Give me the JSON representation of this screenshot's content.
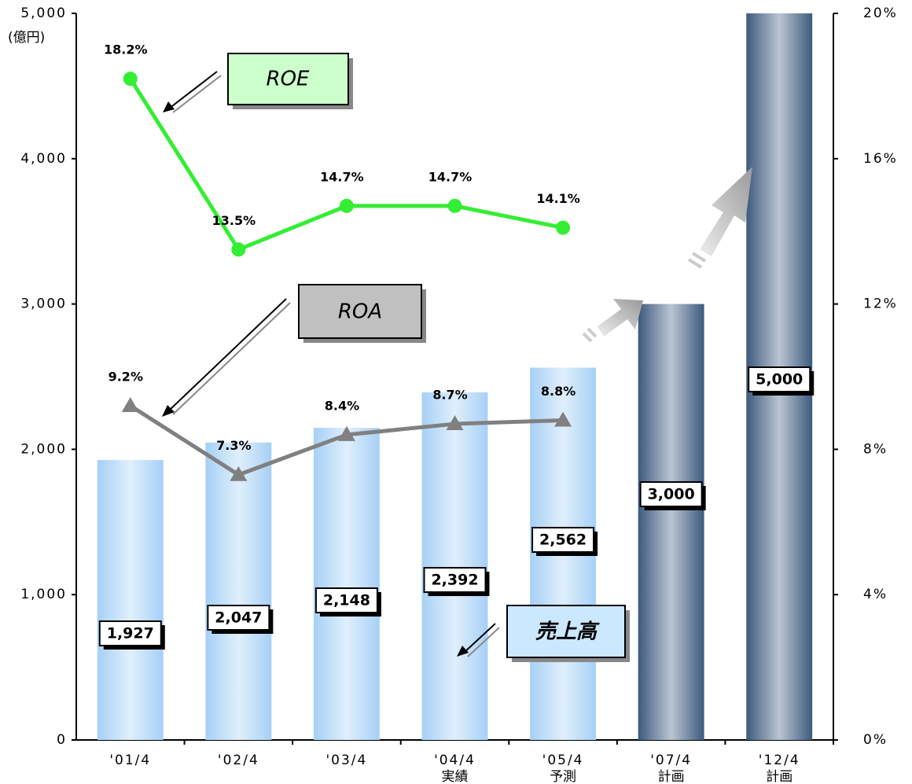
{
  "chart_data": {
    "type": "combo",
    "y_unit": "(億円)",
    "categories": [
      "'01/4",
      "'02/4",
      "'03/4",
      "'04/4",
      "'05/4",
      "'07/4",
      "'12/4"
    ],
    "sublabels": [
      null,
      null,
      null,
      "実績",
      "予測",
      "計画",
      "計画"
    ],
    "ylim": [
      0,
      5000
    ],
    "yticks": [
      0,
      {
        "value": 1000,
        "label": "1,000"
      },
      {
        "value": 2000,
        "label": "2,000"
      },
      {
        "value": 3000,
        "label": "3,000"
      },
      {
        "value": 4000,
        "label": "4,000"
      },
      {
        "value": 5000,
        "label": "5,000"
      }
    ],
    "y2lim": [
      0,
      20
    ],
    "y2ticks": [
      {
        "value": 0,
        "label": "0%"
      },
      {
        "value": 4,
        "label": "4%"
      },
      {
        "value": 8,
        "label": "8%"
      },
      {
        "value": 12,
        "label": "12%"
      },
      {
        "value": 16,
        "label": "16%"
      },
      {
        "value": 20,
        "label": "20%"
      }
    ],
    "series": [
      {
        "name": "売上高",
        "type": "bar",
        "colors": [
          "#a6d0f6",
          "#a6d0f6",
          "#a6d0f6",
          "#a6d0f6",
          "#a6d0f6",
          "#3d5a7e",
          "#3d5a7e"
        ],
        "values": [
          1927,
          2047,
          2148,
          2392,
          2562,
          3000,
          5000
        ],
        "value_labels": [
          "1,927",
          "2,047",
          "2,148",
          "2,392",
          "2,562",
          "3,000",
          "5,000"
        ]
      },
      {
        "name": "ROE",
        "type": "line",
        "axis": "y2",
        "color": "#33ee33",
        "marker": "circle",
        "values": [
          18.2,
          13.5,
          14.7,
          14.7,
          14.1,
          null,
          null
        ],
        "value_labels": [
          "18.2%",
          "13.5%",
          "14.7%",
          "14.7%",
          "14.1%",
          null,
          null
        ]
      },
      {
        "name": "ROA",
        "type": "line",
        "axis": "y2",
        "color": "#808080",
        "marker": "triangle",
        "values": [
          9.2,
          7.3,
          8.4,
          8.7,
          8.8,
          null,
          null
        ],
        "value_labels": [
          "9.2%",
          "7.3%",
          "8.4%",
          "8.7%",
          "8.8%",
          null,
          null
        ]
      }
    ]
  }
}
